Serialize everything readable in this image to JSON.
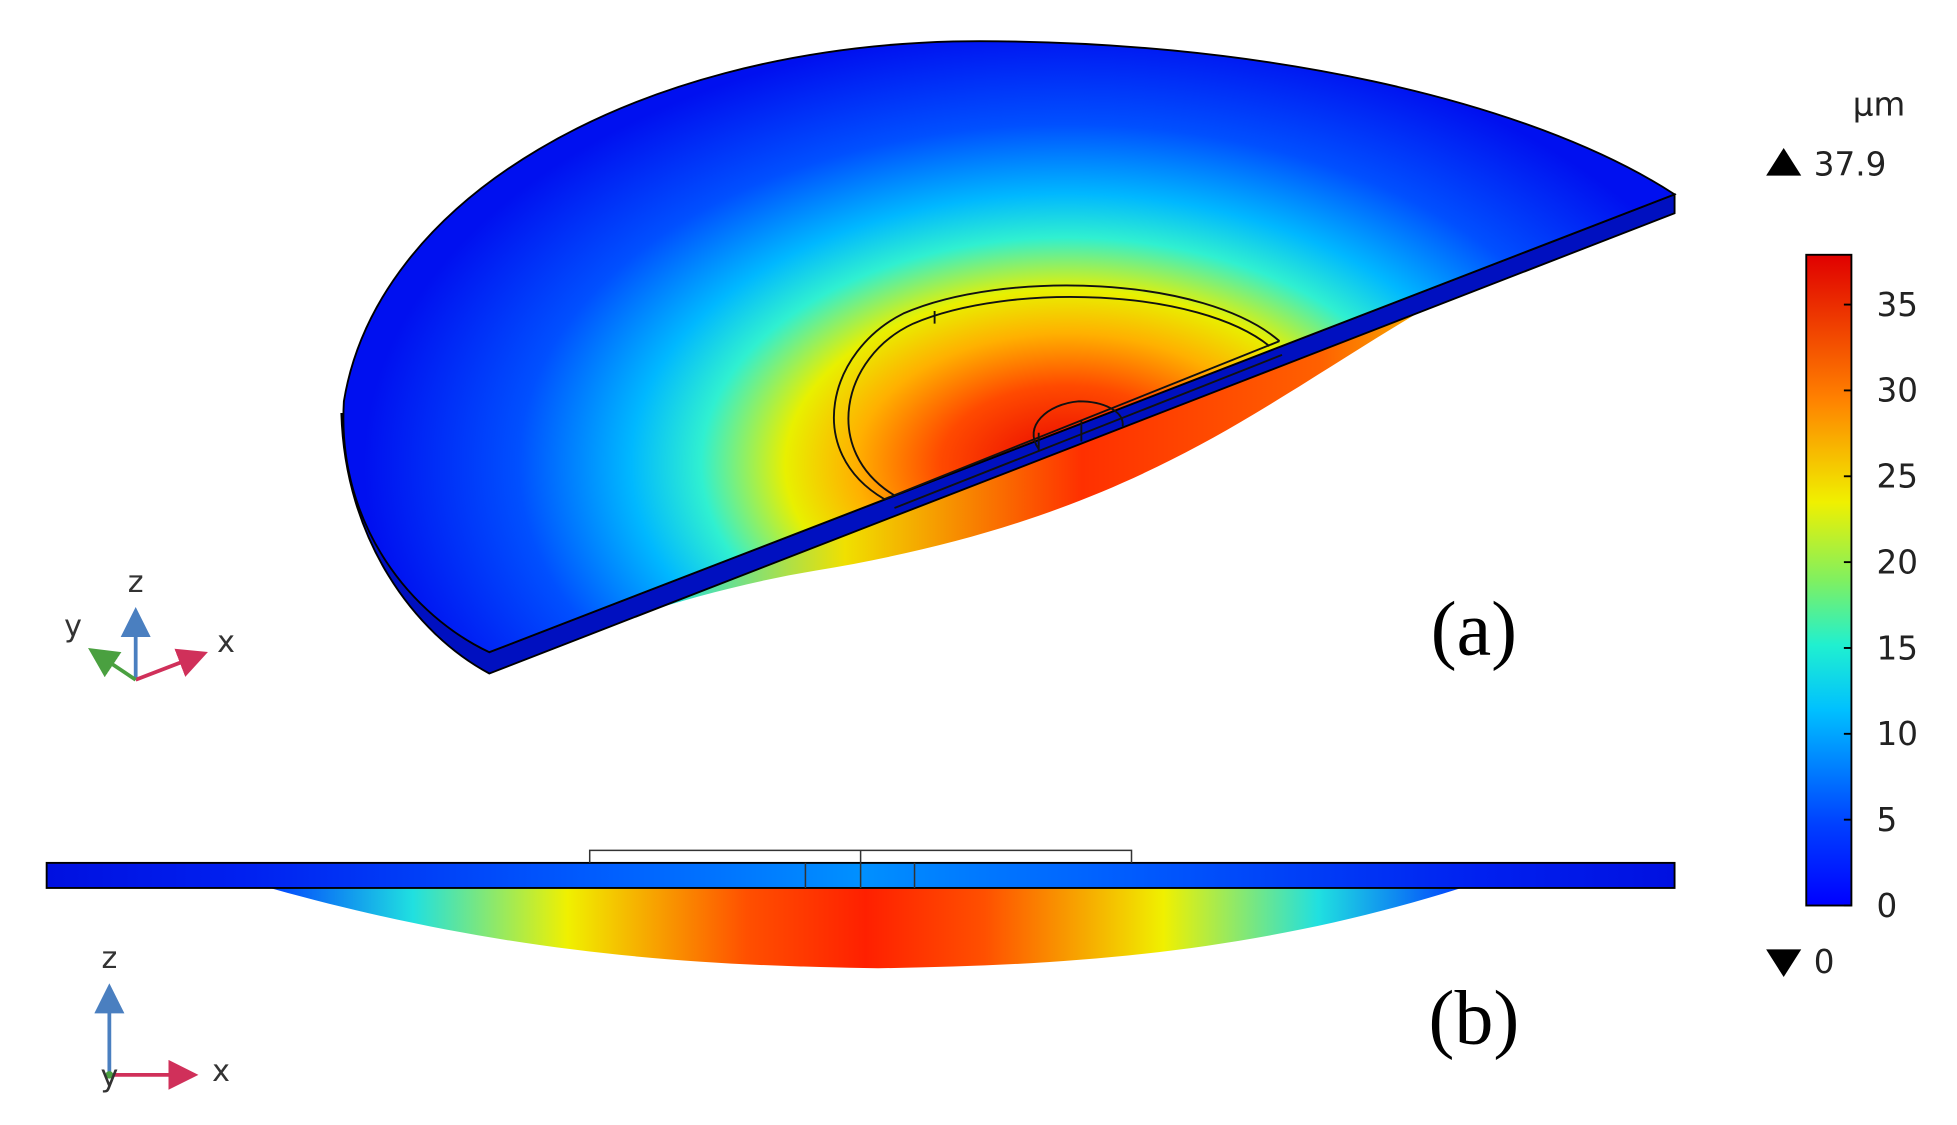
{
  "figure_a": {
    "label": "(a)",
    "axes": {
      "z": "z",
      "y": "y",
      "x": "x"
    }
  },
  "figure_b": {
    "label": "(b)",
    "axes": {
      "z": "z",
      "y": "y",
      "x": "x"
    }
  },
  "colorbar": {
    "unit": "µm",
    "max": 37.9,
    "min": 0,
    "ticks": [
      0,
      5,
      10,
      15,
      20,
      25,
      30,
      35
    ]
  }
}
